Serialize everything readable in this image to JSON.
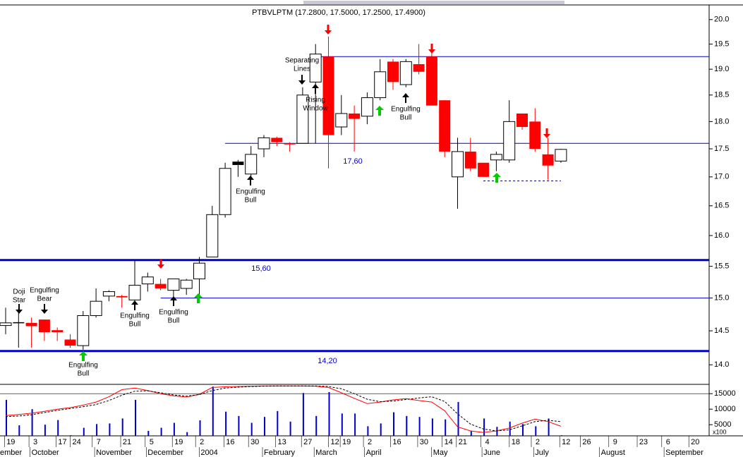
{
  "chart_data": [
    {
      "type": "candlestick",
      "title": "PTBVLPTM (17.2800, 17.5000, 17.2500, 17.4900)",
      "yscale": "log",
      "ylim": [
        13.72,
        20.29
      ],
      "yticks": [
        {
          "value": 14,
          "label": "14.0"
        },
        14.5,
        {
          "value": 15,
          "label": "15.0"
        },
        15.5,
        {
          "value": 16,
          "label": "16.0"
        },
        16.5,
        {
          "value": 17,
          "label": "17.0"
        },
        17.5,
        {
          "value": 18,
          "label": "18.0"
        },
        18.5,
        {
          "value": 19,
          "label": "19.0"
        },
        19.5,
        {
          "value": 20,
          "label": "20.0"
        }
      ],
      "xlim": [
        -0.45,
        54.5
      ],
      "xticks": [
        {
          "value": 0.4,
          "label": "19"
        },
        {
          "value": 2.3,
          "label": "3"
        },
        {
          "value": 4.4,
          "label": "17"
        },
        {
          "value": 5.5,
          "label": "24"
        },
        {
          "value": 7.2,
          "label": "7"
        },
        {
          "value": 9.4,
          "label": "21"
        },
        {
          "value": 11.3,
          "label": "5"
        },
        {
          "value": 13.4,
          "label": "19"
        },
        {
          "value": 15.2,
          "label": "2"
        },
        {
          "value": 17.4,
          "label": "16"
        },
        {
          "value": 19.3,
          "label": "30"
        },
        {
          "value": 21.4,
          "label": "13"
        },
        {
          "value": 23.4,
          "label": "27"
        },
        {
          "value": 25.5,
          "label": "12"
        },
        {
          "value": 26.4,
          "label": "19"
        },
        {
          "value": 28.2,
          "label": "2"
        },
        {
          "value": 30.3,
          "label": "16"
        },
        {
          "value": 32.4,
          "label": "30"
        },
        {
          "value": 34.3,
          "label": "14"
        },
        {
          "value": 35.4,
          "label": "21"
        },
        {
          "value": 37.3,
          "label": "4"
        },
        {
          "value": 39.5,
          "label": "18"
        },
        {
          "value": 41.2,
          "label": "2"
        },
        {
          "value": 43.4,
          "label": "12"
        },
        {
          "value": 45,
          "label": "26"
        },
        {
          "value": 47.2,
          "label": "9"
        },
        {
          "value": 49.4,
          "label": "23"
        },
        {
          "value": 51.3,
          "label": "6"
        },
        {
          "value": 53.4,
          "label": "20"
        }
      ],
      "month_ticks": [
        {
          "value": -0.44,
          "label": "ember"
        },
        {
          "value": 2,
          "label": "October"
        },
        {
          "value": 7,
          "label": "November"
        },
        {
          "value": 11,
          "label": "December"
        },
        {
          "value": 15.1,
          "label": "2004"
        },
        {
          "value": 20,
          "label": "February"
        },
        {
          "value": 24,
          "label": "March"
        },
        {
          "value": 27.9,
          "label": "April"
        },
        {
          "value": 33.1,
          "label": "May"
        },
        {
          "value": 37,
          "label": "June"
        },
        {
          "value": 41,
          "label": "July"
        },
        {
          "value": 46.1,
          "label": "August"
        },
        {
          "value": 51.1,
          "label": "September"
        }
      ],
      "open": [
        14.58,
        14.62,
        14.62,
        14.67,
        14.51,
        14.37,
        14.28,
        14.73,
        15.03,
        15.03,
        14.97,
        15.22,
        15.22,
        15.12,
        15.15,
        15.3,
        15.65,
        16.35,
        17.27,
        17.05,
        17.5,
        17.7,
        17.6,
        17.6,
        18.75,
        19.25,
        17.9,
        18.15,
        18.1,
        18.45,
        19.15,
        18.7,
        19.1,
        19.25,
        18.4,
        17.0,
        17.45,
        17.25,
        17.3,
        17.3,
        18.15,
        18.0,
        17.4,
        17.28
      ],
      "high": [
        14.85,
        14.85,
        14.7,
        14.67,
        14.55,
        14.45,
        14.8,
        15.15,
        15.12,
        15.05,
        15.6,
        15.4,
        15.3,
        15.3,
        15.3,
        15.65,
        16.5,
        17.25,
        17.3,
        17.55,
        17.75,
        17.72,
        17.62,
        18.65,
        19.5,
        19.65,
        18.5,
        18.3,
        18.55,
        19.2,
        19.2,
        19.2,
        19.5,
        19.4,
        18.4,
        17.7,
        17.7,
        17.25,
        17.45,
        18.4,
        18.15,
        18.25,
        17.7,
        17.5
      ],
      "low": [
        14.45,
        14.25,
        14.25,
        14.35,
        14.35,
        14.25,
        14.22,
        14.7,
        14.95,
        14.85,
        14.85,
        15.1,
        15.12,
        15.02,
        15.05,
        15.05,
        15.65,
        16.3,
        17.0,
        16.95,
        17.35,
        17.55,
        17.45,
        17.6,
        17.6,
        17.15,
        17.75,
        17.45,
        17.95,
        18.4,
        18.6,
        18.65,
        18.9,
        18.3,
        17.35,
        16.45,
        17.1,
        17.0,
        17.1,
        17.25,
        17.85,
        17.45,
        16.95,
        17.25
      ],
      "close": [
        14.62,
        14.63,
        14.57,
        14.48,
        14.48,
        14.28,
        14.73,
        14.95,
        15.1,
        15.01,
        15.2,
        15.33,
        15.15,
        15.3,
        15.28,
        15.55,
        16.35,
        17.15,
        17.21,
        17.4,
        17.7,
        17.62,
        17.58,
        18.5,
        19.3,
        17.75,
        18.15,
        18.05,
        18.45,
        18.95,
        18.75,
        19.15,
        18.95,
        18.3,
        17.45,
        17.45,
        17.15,
        17.0,
        17.4,
        18.0,
        17.9,
        17.5,
        17.2,
        17.49
      ],
      "colors": [
        "#ffffff",
        "#000000",
        "#ff0000",
        "#ff0000",
        "#ff0000",
        "#ff0000",
        "#ffffff",
        "#ffffff",
        "#ffffff",
        "#ff0000",
        "#ffffff",
        "#ffffff",
        "#ff0000",
        "#ffffff",
        "#ffffff",
        "#ffffff",
        "#ffffff",
        "#ffffff",
        "#000000",
        "#ffffff",
        "#ffffff",
        "#ff0000",
        "#ff0000",
        "#ffffff",
        "#ffffff",
        "#ff0000",
        "#ffffff",
        "#ff0000",
        "#ffffff",
        "#ffffff",
        "#ff0000",
        "#ffffff",
        "#ff0000",
        "#ff0000",
        "#ff0000",
        "#ffffff",
        "#ff0000",
        "#ff0000",
        "#ffffff",
        "#ffffff",
        "#ff0000",
        "#ff0000",
        "#ff0000",
        "#ffffff"
      ],
      "levels": [
        {
          "value": 17.6,
          "label": "17,60"
        },
        {
          "value": 15.6,
          "label": "15,60"
        },
        {
          "value": 14.2,
          "label": "14,20"
        }
      ],
      "lines": [
        19.25,
        15.0,
        16.93
      ],
      "line_color": "#0000cc",
      "annotations": [
        [
          "Doji",
          "Star"
        ],
        [
          "Engulfing",
          "Bear"
        ],
        [
          "Engulfing",
          "Bull"
        ],
        [
          "Engulfing",
          "Bull"
        ],
        [
          "Engulfing",
          "Bull"
        ],
        [
          "Engulfing",
          "Bull"
        ],
        [
          "Separating",
          "Lines"
        ],
        [
          "Rising",
          "Window"
        ],
        [
          "Engulfing",
          "Bull"
        ]
      ]
    },
    {
      "type": "volume",
      "ylim": [
        1400,
        18000
      ],
      "yticks": [
        5000,
        10000,
        15000
      ],
      "unit_label": "x100",
      "color": "#0000cc",
      "values": [
        13000,
        4800,
        10000,
        5000,
        6500,
        1600,
        4000,
        5200,
        5400,
        7000,
        13000,
        3000,
        4000,
        5600,
        2600,
        6400,
        17300,
        9200,
        7800,
        5600,
        7500,
        9400,
        6000,
        15200,
        7800,
        15500,
        8600,
        8600,
        4500,
        5400,
        9000,
        7800,
        7500,
        7000,
        6700,
        12300,
        3000,
        7000,
        4300,
        6000,
        5200,
        4500,
        7000,
        1600
      ],
      "series": [
        {
          "color": "#ff0000",
          "dashed": false,
          "values": [
            7950,
            8300,
            8700,
            9300,
            10000,
            10500,
            11300,
            12300,
            14000,
            16300,
            16800,
            16000,
            15000,
            14300,
            13900,
            14800,
            17000,
            17200,
            17300,
            17400,
            17500,
            17500,
            17500,
            17500,
            17400,
            17000,
            15300,
            13500,
            11800,
            12300,
            13000,
            13400,
            12800,
            12300,
            9500,
            4300,
            3000,
            2500,
            3000,
            3900,
            5500,
            6800,
            6000,
            4500
          ]
        },
        {
          "color": "#000000",
          "dashed": true,
          "values": [
            7600,
            7800,
            8200,
            8900,
            9600,
            10200,
            10800,
            11500,
            12800,
            14500,
            15800,
            15900,
            15300,
            14600,
            14200,
            14700,
            16000,
            16800,
            17100,
            17300,
            17400,
            17500,
            17500,
            17500,
            17500,
            17300,
            16600,
            15000,
            13200,
            12400,
            12600,
            13100,
            13600,
            14000,
            12500,
            8500,
            5200,
            3600,
            3000,
            3300,
            4600,
            6000,
            6400,
            6000
          ]
        }
      ]
    }
  ]
}
